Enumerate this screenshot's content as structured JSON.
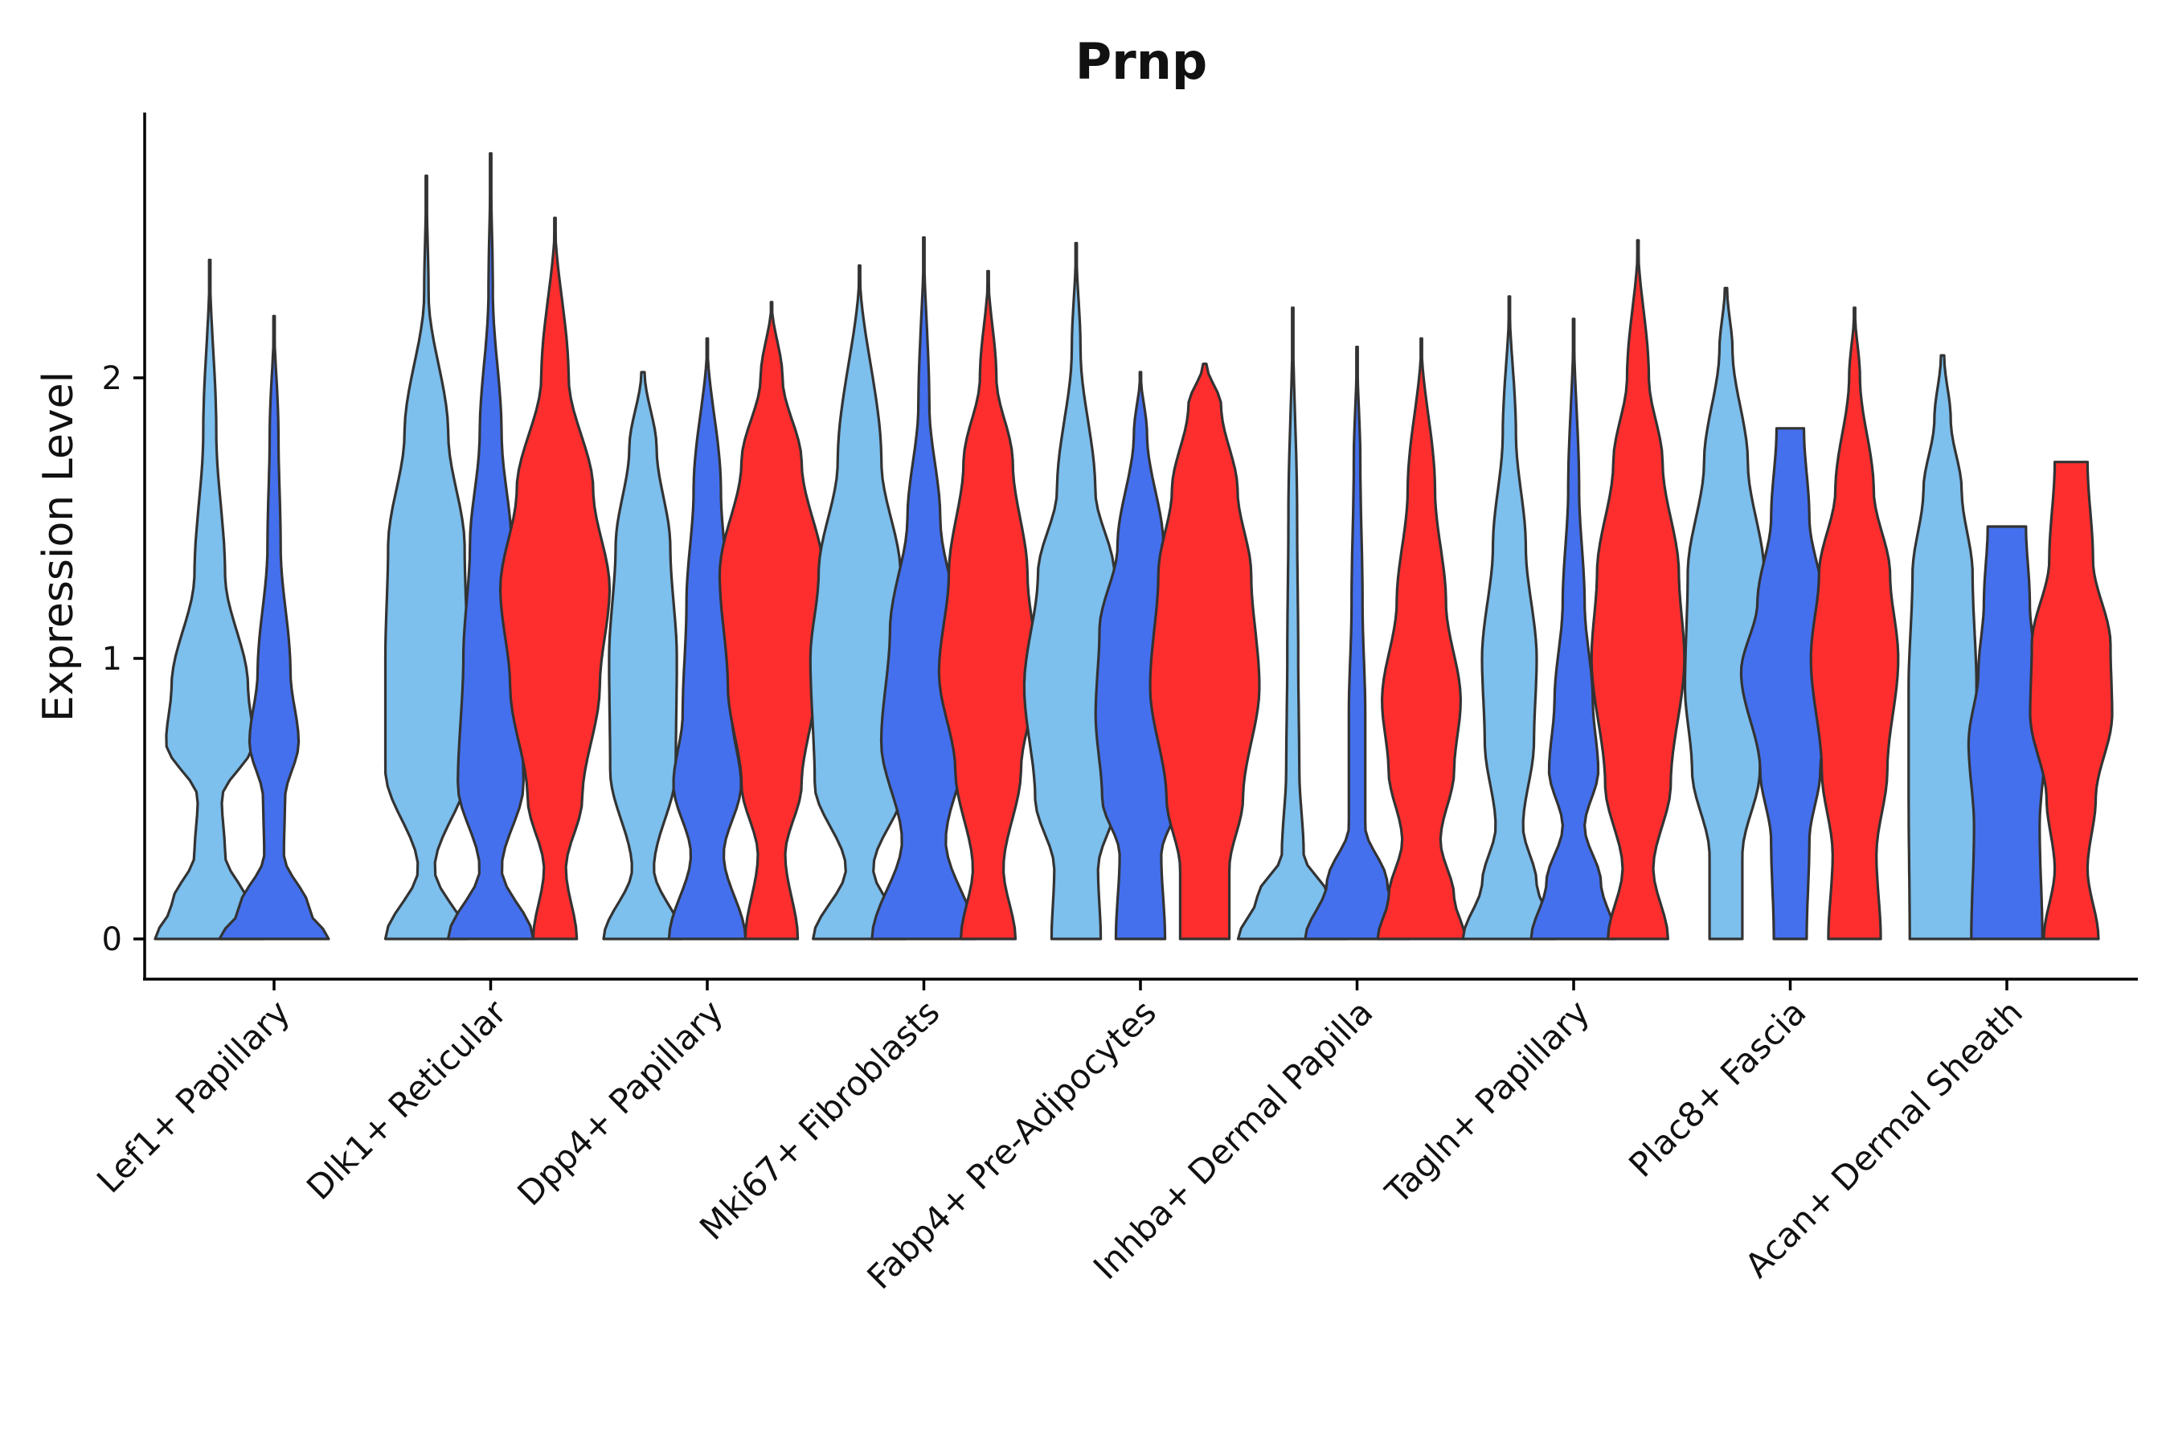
{
  "chart_data": {
    "type": "violin",
    "title": "Prnp",
    "xlabel": "",
    "ylabel": "Expression Level",
    "ylim": [
      -0.14,
      2.95
    ],
    "yticks": [
      0,
      1,
      2
    ],
    "grid": false,
    "legend": "none",
    "categories": [
      "Lef1+ Papillary",
      "Dlk1+ Reticular",
      "Dpp4+ Papillary",
      "Mki67+ Fibroblasts",
      "Fabp4+ Pre-Adipocytes",
      "Inhba+ Dermal Papilla",
      "Tagln+ Papillary",
      "Plac8+ Fascia",
      "Acan+ Dermal Sheath"
    ],
    "series_colors": [
      "#7dbfed",
      "#4470ee",
      "#ff2e2e"
    ],
    "violins": [
      {
        "category": "Lef1+ Papillary",
        "group": 1,
        "color": "#7dbfed",
        "max": 2.42,
        "profile": [
          [
            0,
            1
          ],
          [
            0.12,
            0.7
          ],
          [
            0.3,
            0.28
          ],
          [
            0.5,
            0.22
          ],
          [
            0.7,
            0.8
          ],
          [
            0.9,
            0.7
          ],
          [
            1.3,
            0.28
          ],
          [
            1.8,
            0.12
          ],
          [
            2.42,
            0
          ]
        ]
      },
      {
        "category": "Lef1+ Papillary",
        "group": 2,
        "color": "#4470ee",
        "max": 2.22,
        "profile": [
          [
            0,
            1
          ],
          [
            0.1,
            0.65
          ],
          [
            0.3,
            0.18
          ],
          [
            0.5,
            0.2
          ],
          [
            0.7,
            0.45
          ],
          [
            0.95,
            0.3
          ],
          [
            1.4,
            0.12
          ],
          [
            1.8,
            0.08
          ],
          [
            2.22,
            0
          ]
        ]
      },
      {
        "category": "Dlk1+ Reticular",
        "group": 1,
        "color": "#7dbfed",
        "max": 2.72,
        "profile": [
          [
            0,
            0.75
          ],
          [
            0.25,
            0.15
          ],
          [
            0.6,
            0.75
          ],
          [
            1.0,
            0.75
          ],
          [
            1.4,
            0.7
          ],
          [
            1.8,
            0.4
          ],
          [
            2.3,
            0.04
          ],
          [
            2.72,
            0
          ]
        ]
      },
      {
        "category": "Dlk1+ Reticular",
        "group": 2,
        "color": "#4470ee",
        "max": 2.8,
        "profile": [
          [
            0,
            0.78
          ],
          [
            0.25,
            0.2
          ],
          [
            0.55,
            0.6
          ],
          [
            1.0,
            0.5
          ],
          [
            1.4,
            0.38
          ],
          [
            1.8,
            0.2
          ],
          [
            2.3,
            0.04
          ],
          [
            2.8,
            0
          ]
        ]
      },
      {
        "category": "Dlk1+ Reticular",
        "group": 3,
        "color": "#ff2e2e",
        "max": 2.57,
        "profile": [
          [
            0,
            0.4
          ],
          [
            0.25,
            0.2
          ],
          [
            0.5,
            0.5
          ],
          [
            0.9,
            0.82
          ],
          [
            1.25,
            1
          ],
          [
            1.6,
            0.7
          ],
          [
            2.0,
            0.25
          ],
          [
            2.57,
            0
          ]
        ]
      },
      {
        "category": "Dpp4+ Papillary",
        "group": 1,
        "color": "#7dbfed",
        "max": 2.02,
        "profile": [
          [
            0,
            0.72
          ],
          [
            0.25,
            0.2
          ],
          [
            0.6,
            0.6
          ],
          [
            1.0,
            0.62
          ],
          [
            1.4,
            0.5
          ],
          [
            1.75,
            0.25
          ],
          [
            2.02,
            0.03
          ]
        ]
      },
      {
        "category": "Dpp4+ Papillary",
        "group": 2,
        "color": "#4470ee",
        "max": 2.14,
        "profile": [
          [
            0,
            0.7
          ],
          [
            0.3,
            0.3
          ],
          [
            0.55,
            0.62
          ],
          [
            0.8,
            0.45
          ],
          [
            1.2,
            0.38
          ],
          [
            1.6,
            0.25
          ],
          [
            2.14,
            0
          ]
        ]
      },
      {
        "category": "Dpp4+ Papillary",
        "group": 3,
        "color": "#ff2e2e",
        "max": 2.27,
        "profile": [
          [
            0,
            0.48
          ],
          [
            0.3,
            0.25
          ],
          [
            0.55,
            0.55
          ],
          [
            0.9,
            0.8
          ],
          [
            1.3,
            0.95
          ],
          [
            1.7,
            0.55
          ],
          [
            2.0,
            0.2
          ],
          [
            2.27,
            0
          ]
        ]
      },
      {
        "category": "Mki67+ Fibroblasts",
        "group": 1,
        "color": "#7dbfed",
        "max": 2.4,
        "profile": [
          [
            0,
            0.85
          ],
          [
            0.25,
            0.25
          ],
          [
            0.55,
            0.82
          ],
          [
            1.0,
            0.9
          ],
          [
            1.3,
            0.75
          ],
          [
            1.7,
            0.4
          ],
          [
            2.4,
            0
          ]
        ]
      },
      {
        "category": "Mki67+ Fibroblasts",
        "group": 2,
        "color": "#4470ee",
        "max": 2.5,
        "profile": [
          [
            0,
            0.95
          ],
          [
            0.35,
            0.4
          ],
          [
            0.7,
            0.78
          ],
          [
            1.1,
            0.62
          ],
          [
            1.5,
            0.3
          ],
          [
            1.9,
            0.1
          ],
          [
            2.5,
            0
          ]
        ]
      },
      {
        "category": "Mki67+ Fibroblasts",
        "group": 3,
        "color": "#ff2e2e",
        "max": 2.38,
        "profile": [
          [
            0,
            0.5
          ],
          [
            0.25,
            0.28
          ],
          [
            0.6,
            0.6
          ],
          [
            0.95,
            0.9
          ],
          [
            1.3,
            0.72
          ],
          [
            1.7,
            0.45
          ],
          [
            2.0,
            0.15
          ],
          [
            2.38,
            0
          ]
        ]
      },
      {
        "category": "Fabp4+ Pre-Adipocytes",
        "group": 1,
        "color": "#7dbfed",
        "max": 2.48,
        "profile": [
          [
            0,
            0.45
          ],
          [
            0.25,
            0.4
          ],
          [
            0.5,
            0.75
          ],
          [
            0.9,
            0.95
          ],
          [
            1.3,
            0.7
          ],
          [
            1.6,
            0.35
          ],
          [
            2.1,
            0.08
          ],
          [
            2.48,
            0
          ]
        ]
      },
      {
        "category": "Fabp4+ Pre-Adipocytes",
        "group": 2,
        "color": "#4470ee",
        "max": 2.02,
        "profile": [
          [
            0,
            0.45
          ],
          [
            0.3,
            0.38
          ],
          [
            0.5,
            0.7
          ],
          [
            0.8,
            0.82
          ],
          [
            1.1,
            0.75
          ],
          [
            1.4,
            0.42
          ],
          [
            1.8,
            0.12
          ],
          [
            2.02,
            0
          ]
        ]
      },
      {
        "category": "Fabp4+ Pre-Adipocytes",
        "group": 3,
        "color": "#ff2e2e",
        "max": 2.05,
        "profile": [
          [
            0,
            0.45
          ],
          [
            0.25,
            0.45
          ],
          [
            0.5,
            0.7
          ],
          [
            0.9,
            1
          ],
          [
            1.3,
            0.85
          ],
          [
            1.6,
            0.6
          ],
          [
            1.9,
            0.3
          ],
          [
            2.05,
            0.03
          ]
        ]
      },
      {
        "category": "Inhba+ Dermal Papilla",
        "group": 1,
        "color": "#7dbfed",
        "max": 2.25,
        "profile": [
          [
            0,
            1
          ],
          [
            0.15,
            0.65
          ],
          [
            0.3,
            0.2
          ],
          [
            0.6,
            0.12
          ],
          [
            1.0,
            0.1
          ],
          [
            1.5,
            0.08
          ],
          [
            2.25,
            0
          ]
        ]
      },
      {
        "category": "Inhba+ Dermal Papilla",
        "group": 2,
        "color": "#4470ee",
        "max": 2.11,
        "profile": [
          [
            0,
            0.95
          ],
          [
            0.2,
            0.55
          ],
          [
            0.4,
            0.15
          ],
          [
            0.8,
            0.15
          ],
          [
            1.2,
            0.1
          ],
          [
            1.7,
            0.06
          ],
          [
            2.11,
            0
          ]
        ]
      },
      {
        "category": "Inhba+ Dermal Papilla",
        "group": 3,
        "color": "#ff2e2e",
        "max": 2.14,
        "profile": [
          [
            0,
            0.8
          ],
          [
            0.15,
            0.6
          ],
          [
            0.35,
            0.35
          ],
          [
            0.6,
            0.6
          ],
          [
            0.85,
            0.72
          ],
          [
            1.2,
            0.45
          ],
          [
            1.6,
            0.25
          ],
          [
            2.14,
            0
          ]
        ]
      },
      {
        "category": "Tagln+ Papillary",
        "group": 1,
        "color": "#7dbfed",
        "max": 2.29,
        "profile": [
          [
            0,
            0.85
          ],
          [
            0.2,
            0.5
          ],
          [
            0.4,
            0.25
          ],
          [
            0.7,
            0.45
          ],
          [
            1.0,
            0.5
          ],
          [
            1.4,
            0.3
          ],
          [
            1.8,
            0.12
          ],
          [
            2.29,
            0
          ]
        ]
      },
      {
        "category": "Tagln+ Papillary",
        "group": 2,
        "color": "#4470ee",
        "max": 2.21,
        "profile": [
          [
            0,
            0.78
          ],
          [
            0.2,
            0.5
          ],
          [
            0.4,
            0.2
          ],
          [
            0.6,
            0.45
          ],
          [
            0.85,
            0.35
          ],
          [
            1.2,
            0.2
          ],
          [
            1.6,
            0.1
          ],
          [
            2.21,
            0
          ]
        ]
      },
      {
        "category": "Tagln+ Papillary",
        "group": 3,
        "color": "#ff2e2e",
        "max": 2.49,
        "profile": [
          [
            0,
            0.55
          ],
          [
            0.25,
            0.28
          ],
          [
            0.55,
            0.6
          ],
          [
            1.0,
            0.85
          ],
          [
            1.3,
            0.75
          ],
          [
            1.7,
            0.45
          ],
          [
            2.0,
            0.2
          ],
          [
            2.49,
            0
          ]
        ]
      },
      {
        "category": "Plac8+ Fascia",
        "group": 1,
        "color": "#7dbfed",
        "max": 2.32,
        "profile": [
          [
            0,
            0.3
          ],
          [
            0.3,
            0.3
          ],
          [
            0.6,
            0.62
          ],
          [
            0.9,
            0.75
          ],
          [
            1.3,
            0.7
          ],
          [
            1.7,
            0.4
          ],
          [
            2.1,
            0.12
          ],
          [
            2.32,
            0.02
          ]
        ]
      },
      {
        "category": "Plac8+ Fascia",
        "group": 2,
        "color": "#4470ee",
        "max": 1.82,
        "profile": [
          [
            0,
            0.3
          ],
          [
            0.35,
            0.35
          ],
          [
            0.6,
            0.55
          ],
          [
            0.95,
            0.9
          ],
          [
            1.2,
            0.6
          ],
          [
            1.5,
            0.35
          ],
          [
            1.82,
            0.25
          ]
        ]
      },
      {
        "category": "Plac8+ Fascia",
        "group": 3,
        "color": "#ff2e2e",
        "max": 2.25,
        "profile": [
          [
            0,
            0.48
          ],
          [
            0.3,
            0.4
          ],
          [
            0.6,
            0.6
          ],
          [
            1.0,
            0.8
          ],
          [
            1.3,
            0.65
          ],
          [
            1.6,
            0.35
          ],
          [
            2.0,
            0.1
          ],
          [
            2.25,
            0
          ]
        ]
      },
      {
        "category": "Acan+ Dermal Sheath",
        "group": 1,
        "color": "#7dbfed",
        "max": 2.08,
        "profile": [
          [
            0,
            0.6
          ],
          [
            0.5,
            0.62
          ],
          [
            0.9,
            0.62
          ],
          [
            1.3,
            0.55
          ],
          [
            1.6,
            0.35
          ],
          [
            1.85,
            0.15
          ],
          [
            2.08,
            0.03
          ]
        ]
      },
      {
        "category": "Acan+ Dermal Sheath",
        "group": 2,
        "color": "#4470ee",
        "max": 1.47,
        "profile": [
          [
            0,
            0.65
          ],
          [
            0.4,
            0.6
          ],
          [
            0.7,
            0.7
          ],
          [
            0.95,
            0.52
          ],
          [
            1.2,
            0.42
          ],
          [
            1.47,
            0.35
          ]
        ]
      },
      {
        "category": "Acan+ Dermal Sheath",
        "group": 3,
        "color": "#ff2e2e",
        "max": 1.7,
        "profile": [
          [
            0,
            0.5
          ],
          [
            0.25,
            0.3
          ],
          [
            0.5,
            0.45
          ],
          [
            0.8,
            0.75
          ],
          [
            1.05,
            0.72
          ],
          [
            1.35,
            0.4
          ],
          [
            1.7,
            0.3
          ]
        ]
      }
    ]
  }
}
